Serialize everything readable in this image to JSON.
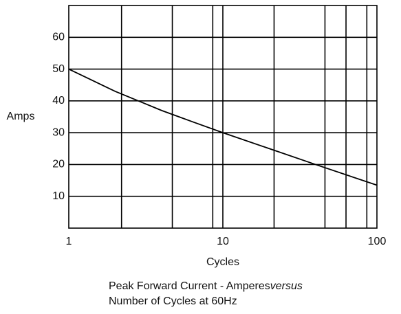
{
  "chart_data": {
    "type": "line",
    "x_label": "Cycles",
    "y_label": "Amps",
    "caption": "Peak Forward Current - Amperes",
    "caption_emphasis": "versus",
    "caption_line2": "Number of Cycles at 60Hz",
    "x": [
      1,
      2,
      3,
      4,
      6.3,
      10,
      20,
      40,
      100
    ],
    "series": [
      {
        "name": "Peak Forward Current",
        "color": "#000000",
        "values": [
          50,
          43,
          39.5,
          37,
          33.5,
          30,
          25,
          20,
          13.5
        ]
      }
    ],
    "xscale": "log",
    "xlim": [
      1,
      100
    ],
    "xticks": [
      1,
      10,
      100
    ],
    "xgrid": [
      2.2,
      4.7,
      8.6,
      10,
      21.5,
      46,
      63,
      86
    ],
    "ylim": [
      0,
      70
    ],
    "yticks": [
      10,
      20,
      30,
      40,
      50,
      60
    ],
    "grid": true
  }
}
